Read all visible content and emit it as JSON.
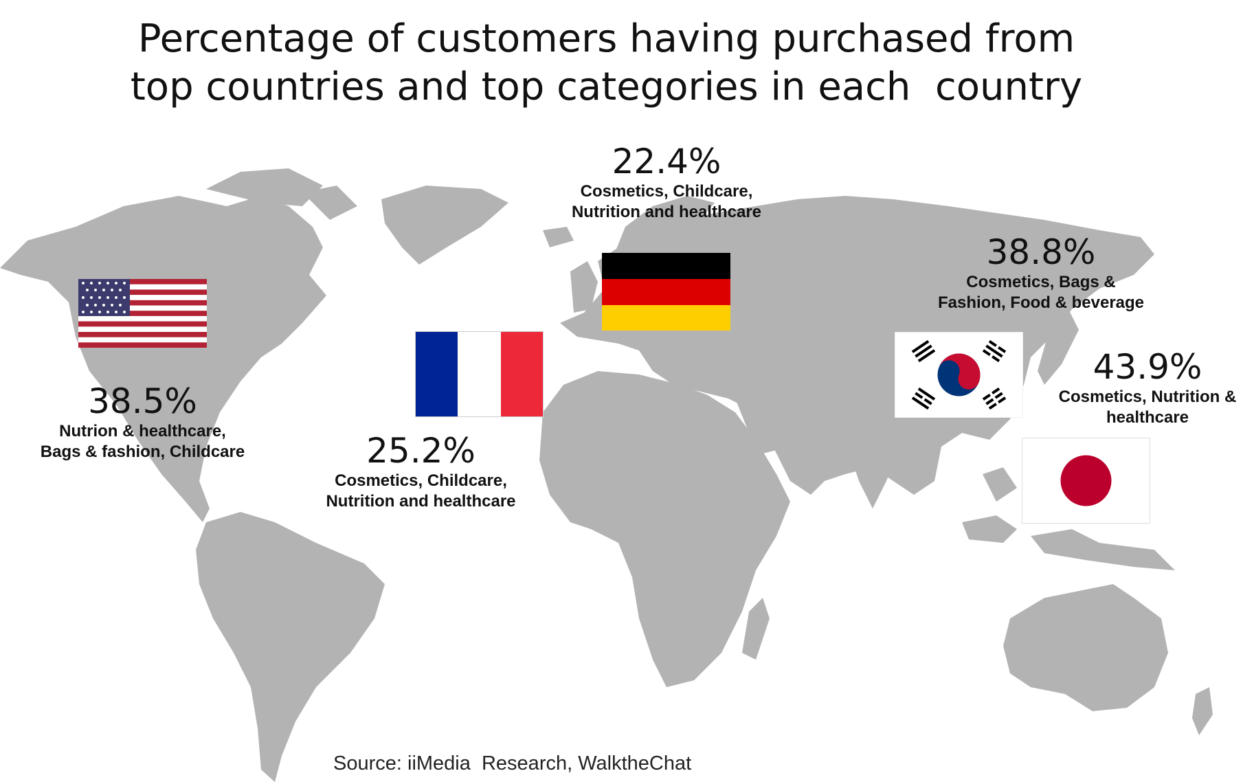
{
  "title": {
    "line1": "Percentage of customers having purchased from",
    "line2": "top countries and top categories in each  country"
  },
  "colors": {
    "land": "#b3b3b3",
    "text": "#111111"
  },
  "countries": {
    "usa": {
      "flag_icon": "usa-flag-icon",
      "percent": "38.5%",
      "categories_line1": "Nutrion & healthcare,",
      "categories_line2": "Bags & fashion, Childcare"
    },
    "france": {
      "flag_icon": "france-flag-icon",
      "percent": "25.2%",
      "categories_line1": "Cosmetics, Childcare,",
      "categories_line2": "Nutrition and healthcare"
    },
    "germany": {
      "flag_icon": "germany-flag-icon",
      "percent": "22.4%",
      "categories_line1": "Cosmetics, Childcare,",
      "categories_line2": "Nutrition and healthcare"
    },
    "korea": {
      "flag_icon": "south-korea-flag-icon",
      "percent": "38.8%",
      "categories_line1": "Cosmetics, Bags &",
      "categories_line2": "Fashion, Food & beverage"
    },
    "japan": {
      "flag_icon": "japan-flag-icon",
      "percent": "43.9%",
      "categories_line1": "Cosmetics, Nutrition &",
      "categories_line2": "healthcare"
    }
  },
  "source": "Source: iiMedia  Research, WalktheChat"
}
